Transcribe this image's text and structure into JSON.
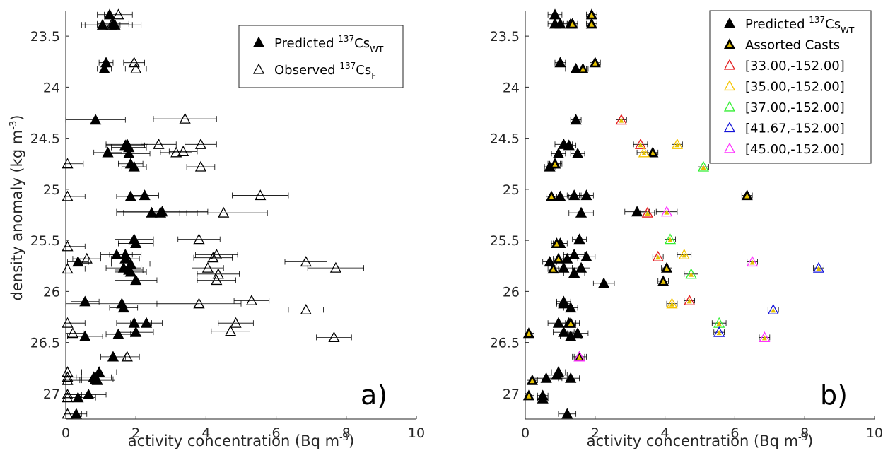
{
  "chart_data": [
    {
      "type": "scatter",
      "panel_label": "a)",
      "xlabel": "activity concentration (Bq m-3)",
      "ylabel": "density anomaly (kg m-3)",
      "xlim": [
        0,
        10
      ],
      "ylim": [
        23.25,
        27.25
      ],
      "y_reversed": true,
      "xticks": [
        "0",
        "2",
        "4",
        "6",
        "8",
        "10"
      ],
      "yticks": [
        "23.5",
        "24",
        "24.5",
        "25",
        "25.5",
        "26",
        "26.5",
        "27"
      ],
      "legend_position": "top-right",
      "legend": [
        {
          "label": "Predicted",
          "sup": "137",
          "base": "Cs",
          "sub": "WT",
          "marker": "filled-triangle",
          "color": "#000000"
        },
        {
          "label": "Observed",
          "sup": "137",
          "base": "Cs",
          "sub": "F",
          "marker": "open-triangle",
          "color": "#000000"
        }
      ],
      "series": [
        {
          "name": "Predicted 137CsWT",
          "marker": "filled",
          "points": [
            [
              1.25,
              23.29,
              0.35
            ],
            [
              1.35,
              23.38,
              0.45
            ],
            [
              1.4,
              23.39,
              0.5
            ],
            [
              1.05,
              23.39,
              0.5
            ],
            [
              1.15,
              23.76,
              0.2
            ],
            [
              1.1,
              23.82,
              0.2
            ],
            [
              0.85,
              24.32,
              0.85
            ],
            [
              1.75,
              24.56,
              0.6
            ],
            [
              1.7,
              24.57,
              0.55
            ],
            [
              1.8,
              24.59,
              0.5
            ],
            [
              1.2,
              24.64,
              0.4
            ],
            [
              1.8,
              24.65,
              0.6
            ],
            [
              1.85,
              24.75,
              0.35
            ],
            [
              1.95,
              24.78,
              0.35
            ],
            [
              1.85,
              25.07,
              0.4
            ],
            [
              2.25,
              25.06,
              0.4
            ],
            [
              2.45,
              25.23,
              1.0
            ],
            [
              2.7,
              25.23,
              1.05
            ],
            [
              2.75,
              25.22,
              1.3
            ],
            [
              1.95,
              25.49,
              0.55
            ],
            [
              2.0,
              25.53,
              0.5
            ],
            [
              1.45,
              25.64,
              0.45
            ],
            [
              1.7,
              25.64,
              0.45
            ],
            [
              0.35,
              25.71,
              0.3
            ],
            [
              1.7,
              25.68,
              0.4
            ],
            [
              1.85,
              25.73,
              0.55
            ],
            [
              1.65,
              25.77,
              0.5
            ],
            [
              1.8,
              25.79,
              0.4
            ],
            [
              1.85,
              25.81,
              0.45
            ],
            [
              2.0,
              25.89,
              0.6
            ],
            [
              0.55,
              26.1,
              0.4
            ],
            [
              1.6,
              26.12,
              2.2
            ],
            [
              1.65,
              26.16,
              0.4
            ],
            [
              1.95,
              26.31,
              0.5
            ],
            [
              2.3,
              26.31,
              0.45
            ],
            [
              2.0,
              26.4,
              0.5
            ],
            [
              0.55,
              26.44,
              0.5
            ],
            [
              1.5,
              26.42,
              0.35
            ],
            [
              1.35,
              26.64,
              0.35
            ],
            [
              0.95,
              26.79,
              0.5
            ],
            [
              0.8,
              26.84,
              0.5
            ],
            [
              0.9,
              26.87,
              0.5
            ],
            [
              0.85,
              26.86,
              0.5
            ],
            [
              0.65,
              27.01,
              0.5
            ],
            [
              0.35,
              27.04,
              0.5
            ],
            [
              0.3,
              27.2,
              0.3
            ]
          ]
        },
        {
          "name": "Observed 137CsF",
          "marker": "open",
          "points": [
            [
              1.5,
              23.29,
              0.4
            ],
            [
              1.3,
              23.39,
              0.85
            ],
            [
              1.95,
              23.76,
              0.3
            ],
            [
              2.0,
              23.82,
              0.3
            ],
            [
              3.4,
              24.31,
              0.9
            ],
            [
              2.65,
              24.56,
              0.5
            ],
            [
              3.85,
              24.56,
              0.45
            ],
            [
              3.15,
              24.64,
              0.45
            ],
            [
              3.35,
              24.63,
              0.4
            ],
            [
              0.05,
              24.75,
              0.45
            ],
            [
              3.85,
              24.78,
              0.4
            ],
            [
              0.05,
              25.07,
              0.5
            ],
            [
              5.55,
              25.06,
              0.8
            ],
            [
              4.5,
              25.23,
              1.25
            ],
            [
              0.05,
              25.56,
              0.5
            ],
            [
              3.8,
              25.49,
              0.6
            ],
            [
              4.3,
              25.64,
              0.6
            ],
            [
              4.2,
              25.67,
              0.55
            ],
            [
              0.6,
              25.68,
              0.4
            ],
            [
              4.05,
              25.77,
              0.45
            ],
            [
              6.85,
              25.71,
              0.6
            ],
            [
              7.7,
              25.77,
              0.8
            ],
            [
              4.35,
              25.83,
              0.6
            ],
            [
              4.3,
              25.89,
              0.55
            ],
            [
              0.05,
              25.78,
              0.5
            ],
            [
              3.8,
              26.12,
              1.2
            ],
            [
              5.3,
              26.09,
              0.5
            ],
            [
              6.85,
              26.18,
              0.5
            ],
            [
              0.05,
              26.31,
              0.5
            ],
            [
              4.85,
              26.31,
              0.5
            ],
            [
              0.2,
              26.41,
              0.3
            ],
            [
              4.7,
              26.39,
              0.55
            ],
            [
              7.65,
              26.45,
              0.5
            ],
            [
              1.75,
              26.64,
              0.35
            ],
            [
              0.05,
              26.79,
              0.4
            ],
            [
              0.05,
              26.84,
              0.4
            ],
            [
              0.05,
              26.87,
              0.4
            ],
            [
              0.05,
              27.01,
              0.4
            ],
            [
              0.05,
              27.04,
              0.4
            ],
            [
              0.05,
              27.2,
              0.4
            ]
          ]
        }
      ]
    },
    {
      "type": "scatter",
      "panel_label": "b)",
      "xlabel": "activity concentration (Bq m-3)",
      "ylabel": "",
      "xlim": [
        0,
        10
      ],
      "ylim": [
        23.25,
        27.25
      ],
      "y_reversed": true,
      "xticks": [
        "0",
        "2",
        "4",
        "6",
        "8",
        "10"
      ],
      "yticks": [
        "23.5",
        "24",
        "24.5",
        "25",
        "25.5",
        "26",
        "26.5",
        "27"
      ],
      "legend_position": "top-right",
      "legend": [
        {
          "label": "Predicted",
          "sup": "137",
          "base": "Cs",
          "sub": "WT",
          "marker": "filled-triangle",
          "color": "#000000"
        },
        {
          "label": "Assorted Casts",
          "marker": "yellow-triangle",
          "color": "#000000"
        },
        {
          "label": "[33.00,-152.00]",
          "marker": "open-triangle",
          "color": "#e31a1c"
        },
        {
          "label": "[35.00,-152.00]",
          "marker": "open-triangle",
          "color": "#f5c400"
        },
        {
          "label": "[37.00,-152.00]",
          "marker": "open-triangle",
          "color": "#33ee33"
        },
        {
          "label": "[41.67,-152.00]",
          "marker": "open-triangle",
          "color": "#1414d8"
        },
        {
          "label": "[45.00,-152.00]",
          "marker": "open-triangle",
          "color": "#ff33ff"
        }
      ],
      "series": [
        {
          "name": "Predicted 137CsWT",
          "marker": "filled",
          "points": [
            [
              0.85,
              23.29,
              0.2
            ],
            [
              0.85,
              23.38,
              0.2
            ],
            [
              1.0,
              23.38,
              0.2
            ],
            [
              1.3,
              23.38,
              0.2
            ],
            [
              1.0,
              23.76,
              0.15
            ],
            [
              1.45,
              23.82,
              0.3
            ],
            [
              1.45,
              24.32,
              0.15
            ],
            [
              1.1,
              24.56,
              0.25
            ],
            [
              1.25,
              24.57,
              0.2
            ],
            [
              0.95,
              24.65,
              0.2
            ],
            [
              1.5,
              24.65,
              0.2
            ],
            [
              0.7,
              24.78,
              0.15
            ],
            [
              0.85,
              24.75,
              0.2
            ],
            [
              1.0,
              25.07,
              0.25
            ],
            [
              1.4,
              25.06,
              0.2
            ],
            [
              1.75,
              25.06,
              0.2
            ],
            [
              1.6,
              25.23,
              0.35
            ],
            [
              3.2,
              25.22,
              0.35
            ],
            [
              1.55,
              25.49,
              0.2
            ],
            [
              1.0,
              25.53,
              0.2
            ],
            [
              1.4,
              25.64,
              0.3
            ],
            [
              1.2,
              25.68,
              0.3
            ],
            [
              1.75,
              25.66,
              0.25
            ],
            [
              0.7,
              25.71,
              0.2
            ],
            [
              1.1,
              25.77,
              0.25
            ],
            [
              1.6,
              25.77,
              0.25
            ],
            [
              1.4,
              25.82,
              0.3
            ],
            [
              2.25,
              25.92,
              0.3
            ],
            [
              1.1,
              26.1,
              0.2
            ],
            [
              1.1,
              26.12,
              0.2
            ],
            [
              1.3,
              26.16,
              0.2
            ],
            [
              0.95,
              26.31,
              0.3
            ],
            [
              1.25,
              26.31,
              0.3
            ],
            [
              1.1,
              26.4,
              0.3
            ],
            [
              1.5,
              26.41,
              0.3
            ],
            [
              1.3,
              26.44,
              0.3
            ],
            [
              1.55,
              26.64,
              0.2
            ],
            [
              0.95,
              26.79,
              0.2
            ],
            [
              0.9,
              26.82,
              0.3
            ],
            [
              0.6,
              26.85,
              0.35
            ],
            [
              1.3,
              26.85,
              0.25
            ],
            [
              0.5,
              27.02,
              0.15
            ],
            [
              0.5,
              27.05,
              0.15
            ],
            [
              1.2,
              27.2,
              0.25
            ]
          ]
        },
        {
          "name": "Assorted Casts",
          "marker": "yellow",
          "points": [
            [
              1.9,
              23.29,
              0.15
            ],
            [
              1.35,
              23.38,
              0.15
            ],
            [
              1.9,
              23.38,
              0.15
            ],
            [
              2.0,
              23.76,
              0.15
            ],
            [
              1.65,
              23.82,
              0.15
            ],
            [
              3.65,
              24.64,
              0.15
            ],
            [
              0.85,
              24.75,
              0.15
            ],
            [
              0.75,
              25.07,
              0.15
            ],
            [
              6.35,
              25.06,
              0.15
            ],
            [
              0.9,
              25.53,
              0.15
            ],
            [
              0.95,
              25.68,
              0.15
            ],
            [
              0.8,
              25.78,
              0.15
            ],
            [
              4.05,
              25.77,
              0.15
            ],
            [
              3.95,
              25.9,
              0.15
            ],
            [
              1.3,
              26.31,
              0.15
            ],
            [
              0.1,
              26.41,
              0.15
            ],
            [
              0.2,
              26.87,
              0.15
            ],
            [
              0.1,
              27.02,
              0.15
            ]
          ]
        },
        {
          "name": "[33.00,-152.00]",
          "marker": "open",
          "color": "#e31a1c",
          "points": [
            [
              2.75,
              24.32,
              0.15
            ],
            [
              3.3,
              24.56,
              0.2
            ],
            [
              3.5,
              25.23,
              0.2
            ],
            [
              3.8,
              25.66,
              0.15
            ],
            [
              4.7,
              26.09,
              0.15
            ]
          ]
        },
        {
          "name": "[35.00,-152.00]",
          "marker": "open",
          "color": "#f5c400",
          "points": [
            [
              4.35,
              24.56,
              0.15
            ],
            [
              3.4,
              24.64,
              0.2
            ],
            [
              4.55,
              25.64,
              0.2
            ],
            [
              4.2,
              26.12,
              0.15
            ]
          ]
        },
        {
          "name": "[37.00,-152.00]",
          "marker": "open",
          "color": "#33ee33",
          "points": [
            [
              5.1,
              24.78,
              0.15
            ],
            [
              4.15,
              25.49,
              0.15
            ],
            [
              4.75,
              25.83,
              0.2
            ],
            [
              5.55,
              26.31,
              0.2
            ]
          ]
        },
        {
          "name": "[41.67,-152.00]",
          "marker": "open",
          "color": "#1414d8",
          "points": [
            [
              8.4,
              25.77,
              0.15
            ],
            [
              7.1,
              26.18,
              0.15
            ],
            [
              5.55,
              26.4,
              0.15
            ]
          ]
        },
        {
          "name": "[45.00,-152.00]",
          "marker": "open",
          "color": "#ff33ff",
          "points": [
            [
              4.05,
              25.22,
              0.3
            ],
            [
              6.5,
              25.71,
              0.15
            ],
            [
              6.85,
              26.45,
              0.15
            ],
            [
              1.55,
              26.64,
              0.15
            ]
          ]
        }
      ]
    }
  ]
}
